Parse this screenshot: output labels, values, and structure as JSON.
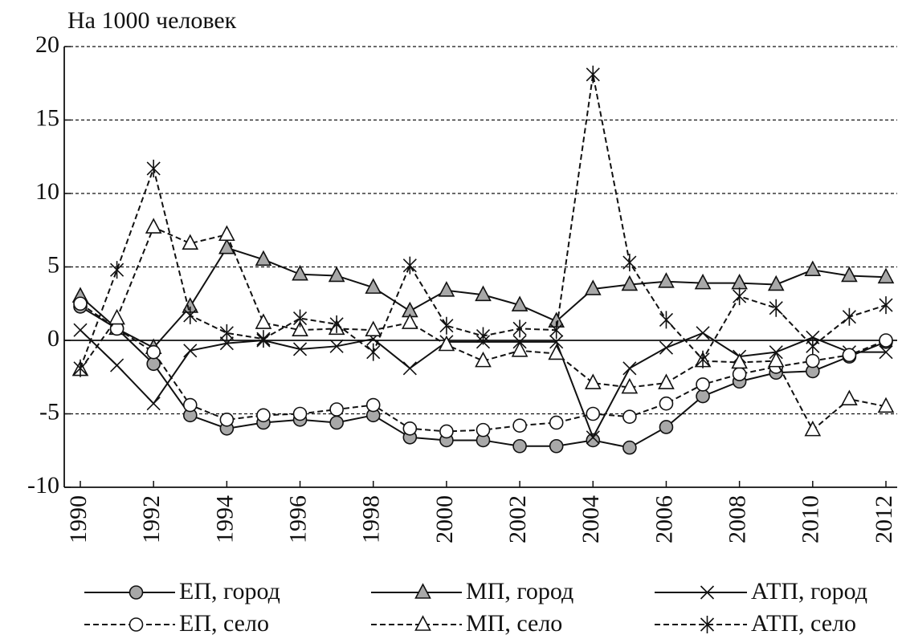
{
  "chart_data": {
    "type": "line",
    "y_label": "На 1000 человек",
    "x": [
      1990,
      1991,
      1992,
      1993,
      1994,
      1995,
      1996,
      1997,
      1998,
      1999,
      2000,
      2001,
      2002,
      2003,
      2004,
      2005,
      2006,
      2007,
      2008,
      2009,
      2010,
      2011,
      2012
    ],
    "xlim": [
      1990,
      2012
    ],
    "xticks": [
      1990,
      1992,
      1994,
      1996,
      1998,
      2000,
      2002,
      2004,
      2006,
      2008,
      2010,
      2012
    ],
    "ylim": [
      -10,
      20
    ],
    "yticks": [
      -10,
      -5,
      0,
      5,
      10,
      15,
      20
    ],
    "grid": true,
    "series": [
      {
        "name": "ЕП, город",
        "color": "#111111",
        "line_style": "solid",
        "marker": "circle",
        "marker_fill": "#a8a8a8",
        "values": [
          2.3,
          0.8,
          -1.6,
          -5.1,
          -6.0,
          -5.6,
          -5.4,
          -5.6,
          -5.1,
          -6.6,
          -6.8,
          -6.8,
          -7.2,
          -7.2,
          -6.8,
          -7.3,
          -5.9,
          -3.8,
          -2.8,
          -2.2,
          -2.1,
          -1.1,
          -0.1
        ]
      },
      {
        "name": "МП, город",
        "color": "#111111",
        "line_style": "solid",
        "marker": "triangle",
        "marker_fill": "#a8a8a8",
        "values": [
          3.0,
          0.8,
          -0.5,
          2.3,
          6.3,
          5.5,
          4.5,
          4.4,
          3.6,
          2.0,
          3.4,
          3.1,
          2.4,
          1.3,
          3.5,
          3.8,
          4.0,
          3.9,
          3.9,
          3.8,
          4.8,
          4.4,
          4.3
        ]
      },
      {
        "name": "АТП, город",
        "color": "#111111",
        "line_style": "solid",
        "marker": "x",
        "marker_fill": "none",
        "values": [
          0.7,
          -1.7,
          -4.3,
          -0.7,
          -0.2,
          0.0,
          -0.6,
          -0.4,
          0.1,
          -1.9,
          -0.1,
          -0.1,
          -0.1,
          -0.1,
          -6.6,
          -1.9,
          -0.5,
          0.5,
          -1.1,
          -0.8,
          0.2,
          -0.8,
          -0.8
        ]
      },
      {
        "name": "ЕП, село",
        "color": "#111111",
        "line_style": "dashed",
        "marker": "circle",
        "marker_fill": "#ffffff",
        "values": [
          2.5,
          0.8,
          -0.8,
          -4.4,
          -5.4,
          -5.1,
          -5.0,
          -4.7,
          -4.4,
          -6.0,
          -6.2,
          -6.1,
          -5.8,
          -5.6,
          -5.0,
          -5.2,
          -4.3,
          -3.0,
          -2.3,
          -1.8,
          -1.4,
          -1.0,
          0.0
        ]
      },
      {
        "name": "МП, село",
        "color": "#111111",
        "line_style": "dashed",
        "marker": "triangle",
        "marker_fill": "#ffffff",
        "values": [
          -2.0,
          1.5,
          7.7,
          6.6,
          7.2,
          1.2,
          0.7,
          0.8,
          0.7,
          1.2,
          -0.3,
          -1.4,
          -0.7,
          -0.9,
          -2.9,
          -3.2,
          -2.9,
          -1.4,
          -1.5,
          -1.4,
          -6.1,
          -4.0,
          -4.5
        ]
      },
      {
        "name": "АТП, село",
        "color": "#111111",
        "line_style": "dashed",
        "marker": "star",
        "marker_fill": "none",
        "values": [
          -1.9,
          4.8,
          11.7,
          1.7,
          0.5,
          0.1,
          1.5,
          1.1,
          -0.8,
          5.1,
          1.0,
          0.3,
          0.8,
          0.7,
          18.1,
          5.3,
          1.4,
          -1.3,
          3.0,
          2.2,
          -0.4,
          1.6,
          2.4
        ]
      }
    ]
  }
}
